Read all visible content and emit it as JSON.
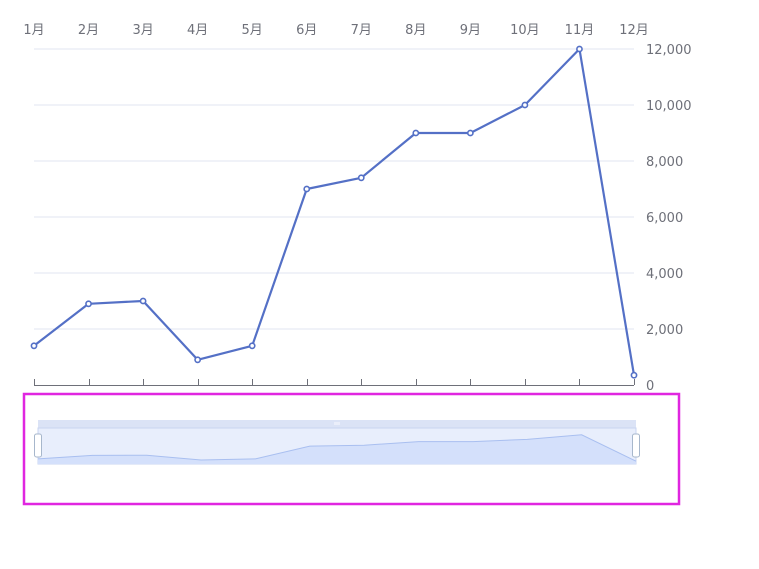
{
  "chart_data": {
    "type": "line",
    "categories": [
      "1月",
      "2月",
      "3月",
      "4月",
      "5月",
      "6月",
      "7月",
      "8月",
      "9月",
      "10月",
      "11月",
      "12月"
    ],
    "series": [
      {
        "values": [
          1400,
          2900,
          3000,
          900,
          1400,
          7000,
          7400,
          9000,
          9000,
          10000,
          12000,
          350
        ]
      }
    ],
    "y_ticks": [
      "0",
      "2,000",
      "4,000",
      "6,000",
      "8,000",
      "10,000",
      "12,000"
    ],
    "ylim": [
      0,
      12000
    ],
    "y_axis_position": "right",
    "x_axis_labels_position": "top",
    "grid": true,
    "data_zoom": {
      "range_start_percent": 0,
      "range_end_percent": 100,
      "highlighted": true
    },
    "colors": {
      "line": "#5470c6",
      "grid": "#e0e6f1",
      "axis": "#6e7079",
      "zoom_fill": "#e8eefc",
      "zoom_area": "#d4e0fb",
      "zoom_bar": "#dbe3f6",
      "highlight_border": "#e026e0"
    }
  }
}
